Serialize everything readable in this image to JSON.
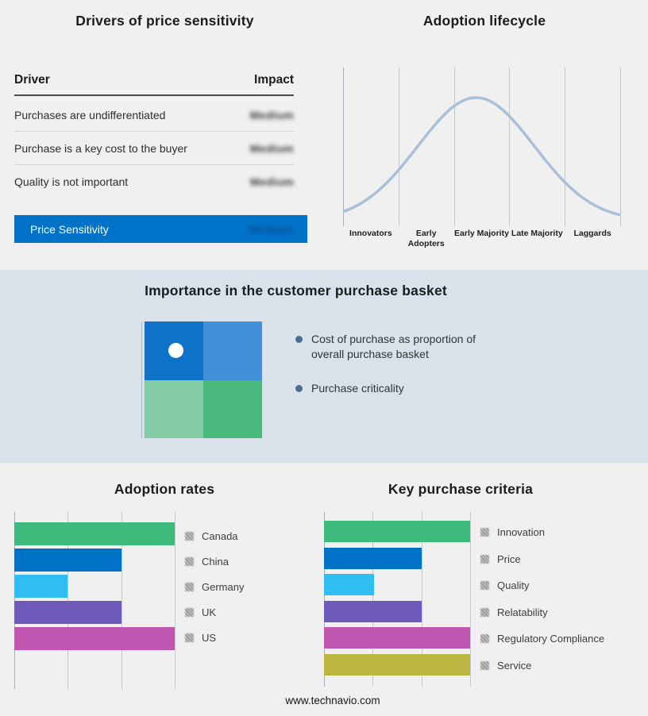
{
  "page": {
    "footer": "www.technavio.com",
    "background": "#f0f0f1",
    "band_background": "#d9e2eb"
  },
  "drivers_panel": {
    "title": "Drivers of price sensitivity",
    "columns": {
      "driver": "Driver",
      "impact": "Impact"
    },
    "rows": [
      {
        "driver": "Purchases are undifferentiated",
        "impact": "Medium",
        "impact_redacted": true
      },
      {
        "driver": "Purchase is a key cost to the buyer",
        "impact": "Medium",
        "impact_redacted": true
      },
      {
        "driver": "Quality is not important",
        "impact": "Medium",
        "impact_redacted": true
      }
    ],
    "highlight": {
      "driver": "Price Sensitivity",
      "impact": "Medium",
      "impact_redacted": true,
      "color": "#0073c8"
    }
  },
  "basket": {
    "title": "Importance in the customer purchase basket",
    "bullets": [
      "Cost of purchase as proportion of overall purchase basket",
      "Purchase criticality"
    ],
    "quadrants": [
      "#0d72c8",
      "#4190d8",
      "#82cba4",
      "#48b87c"
    ],
    "marker_quadrant": "top-left"
  },
  "chart_data": [
    {
      "type": "line",
      "title": "Adoption lifecycle",
      "categories": [
        "Innovators",
        "Early Adopters",
        "Early Majority",
        "Late Majority",
        "Laggards"
      ],
      "shape": "bell curve peaking at Early Majority",
      "grid": true,
      "curve": {
        "color": "#abbfd8",
        "peak_t": 0.48,
        "sigma": 0.21,
        "amplitude": 155,
        "base_y": 193
      }
    },
    {
      "type": "bar",
      "title": "Adoption rates",
      "orientation": "horizontal",
      "categories": [
        "Canada",
        "China",
        "Germany",
        "UK",
        "US"
      ],
      "values": [
        100,
        67,
        33,
        67,
        100
      ],
      "xlim": [
        0,
        100
      ],
      "grid_divisions": 3,
      "colors": [
        "#3eba7c",
        "#0072c6",
        "#30bdf2",
        "#6c59b8",
        "#c156b0"
      ],
      "legend_position": "right"
    },
    {
      "type": "bar",
      "title": "Key purchase criteria",
      "orientation": "horizontal",
      "categories": [
        "Innovation",
        "Price",
        "Quality",
        "Relatability",
        "Regulatory Compliance",
        "Service"
      ],
      "values": [
        100,
        67,
        34,
        67,
        100,
        100
      ],
      "xlim": [
        0,
        100
      ],
      "grid_divisions": 3,
      "colors": [
        "#3eba7c",
        "#0072c6",
        "#30bdf2",
        "#6c59b8",
        "#c156b0",
        "#bcb742"
      ],
      "legend_position": "right"
    }
  ]
}
